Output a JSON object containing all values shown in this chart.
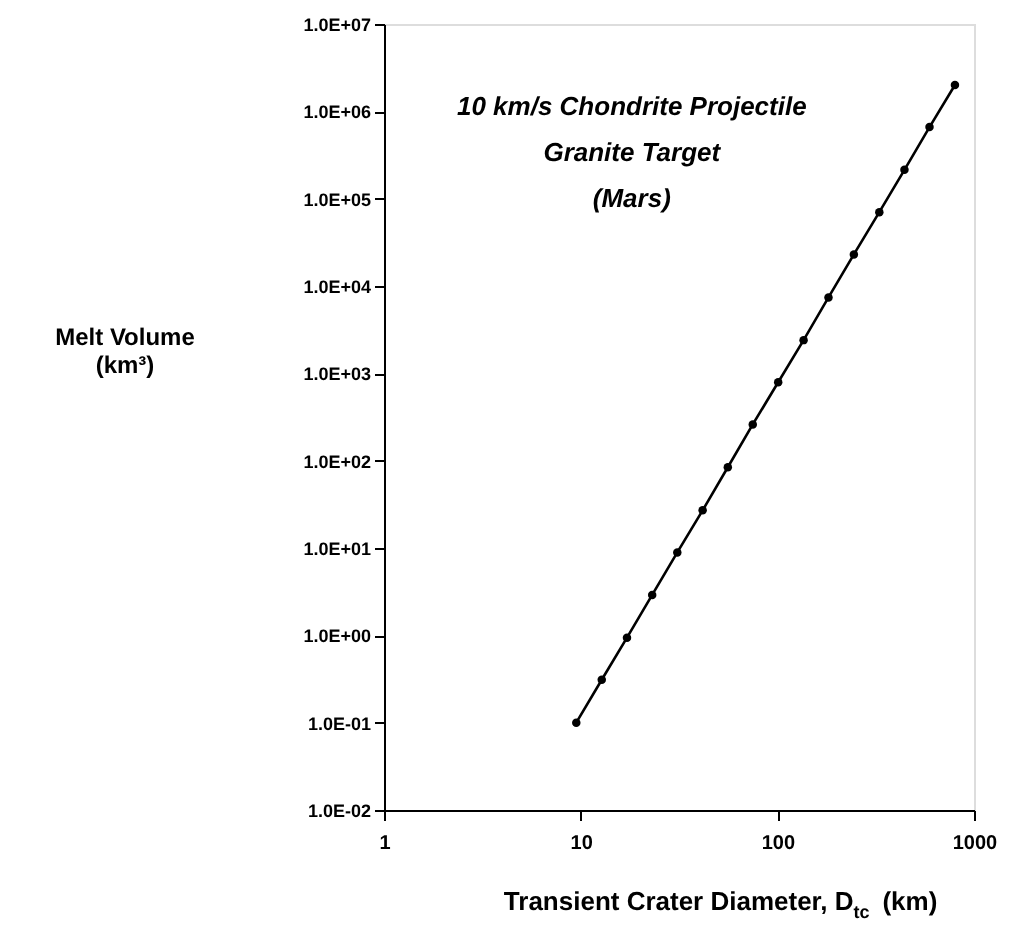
{
  "chart_data": {
    "type": "line",
    "annotations": [
      "10 km/s Chondrite Projectile",
      "Granite Target",
      "(Mars)"
    ],
    "xlabel": "Transient Crater Diameter, D$_{tc}$ (km)",
    "ylabel": "Melt Volume (km³)",
    "x": [
      9.5,
      12.8,
      17.2,
      23.1,
      31,
      41.7,
      56,
      75,
      101,
      136,
      182,
      245,
      330,
      443,
      594,
      800
    ],
    "series": [
      {
        "color": "#000000",
        "values": [
          0.1,
          0.31,
          0.94,
          2.9,
          8.9,
          27,
          84,
          260,
          790,
          2400,
          7400,
          23000,
          70000,
          214000,
          660000,
          2000000
        ]
      }
    ],
    "log": "xy",
    "xlim": [
      1,
      1000
    ],
    "xticks": [
      1,
      10,
      100,
      1000
    ],
    "ylim": [
      0.01,
      10000000
    ],
    "yticks": [
      {
        "value": 0.01,
        "label": "1.0E-02"
      },
      {
        "value": 0.1,
        "label": "1.0E-01"
      },
      {
        "value": 1,
        "label": "1.0E+00"
      },
      {
        "value": 10,
        "label": "1.0E+01"
      },
      {
        "value": 100,
        "label": "1.0E+02"
      },
      {
        "value": 1000,
        "label": "1.0E+03"
      },
      {
        "value": 10000,
        "label": "1.0E+04"
      },
      {
        "value": 100000,
        "label": "1.0E+05"
      },
      {
        "value": 1000000,
        "label": "1.0E+06"
      },
      {
        "value": 10000000,
        "label": "1.0E+07"
      }
    ],
    "marker": "circle",
    "line_style": "solid",
    "grid": false
  }
}
